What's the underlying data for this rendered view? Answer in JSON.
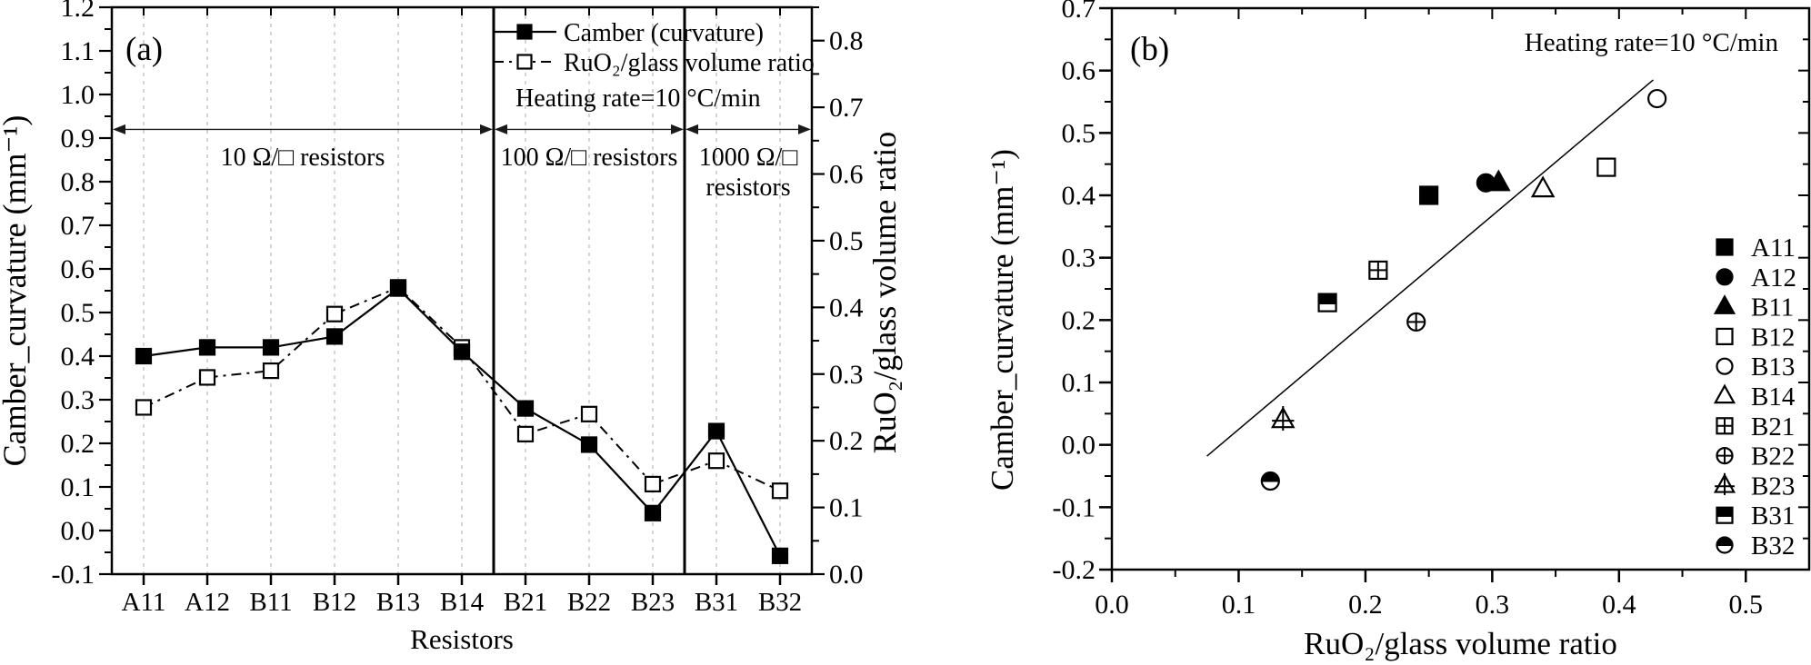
{
  "colors": {
    "foreground": "#000000",
    "background": "#ffffff",
    "grid": "#b9b9b9"
  },
  "chart_data": [
    {
      "id": "a",
      "type": "line",
      "panel_label": "(a)",
      "xlabel": "Resistors",
      "ylabel_left": "Camber_curvature (mm⁻¹)",
      "ylabel_right": "RuO₂/glass volume ratio",
      "categories": [
        "A11",
        "A12",
        "B11",
        "B12",
        "B13",
        "B14",
        "B21",
        "B22",
        "B23",
        "B31",
        "B32"
      ],
      "series": [
        {
          "name": "Camber (curvature)",
          "axis": "left",
          "marker": "filled-square",
          "linestyle": "solid",
          "values": [
            0.4,
            0.42,
            0.42,
            0.445,
            0.555,
            0.41,
            0.28,
            0.197,
            0.04,
            0.228,
            -0.058
          ]
        },
        {
          "name": "RuO₂/glass volume ratio",
          "axis": "right",
          "marker": "open-square",
          "linestyle": "dash-dot",
          "values": [
            0.25,
            0.295,
            0.305,
            0.39,
            0.43,
            0.34,
            0.21,
            0.24,
            0.135,
            0.17,
            0.125
          ]
        }
      ],
      "ylim_left": [
        -0.1,
        1.2
      ],
      "ylim_right": [
        0.0,
        0.85
      ],
      "left_ticks": [
        1.2,
        1.1,
        1.0,
        0.9,
        0.8,
        0.7,
        0.6,
        0.5,
        0.4,
        0.3,
        0.2,
        0.1,
        0.0,
        -0.1
      ],
      "right_ticks": [
        0.8,
        0.7,
        0.6,
        0.5,
        0.4,
        0.3,
        0.2,
        0.1,
        0.0
      ],
      "grid": "vertical-dashed",
      "legend_position": "top-inside",
      "annotations": {
        "heating_rate": "Heating rate=10 °C/min",
        "arrow_y": 0.92,
        "regions": [
          {
            "lines": [
              "10 Ω/□ resistors"
            ],
            "from": "A11",
            "to": "B14"
          },
          {
            "lines": [
              "100 Ω/□ resistors"
            ],
            "from": "B21",
            "to": "B23"
          },
          {
            "lines": [
              "1000 Ω/□",
              "resistors"
            ],
            "from": "B31",
            "to": "B32"
          }
        ]
      }
    },
    {
      "id": "b",
      "type": "scatter",
      "panel_label": "(b)",
      "xlabel": "RuO₂/glass volume ratio",
      "ylabel": "Camber_curvature (mm⁻¹)",
      "xlim": [
        0.0,
        0.55
      ],
      "ylim": [
        -0.2,
        0.7
      ],
      "xticks": [
        0.0,
        0.1,
        0.2,
        0.3,
        0.4,
        0.5
      ],
      "yticks": [
        0.7,
        0.6,
        0.5,
        0.4,
        0.3,
        0.2,
        0.1,
        0.0,
        -0.1,
        -0.2
      ],
      "annotation": "Heating rate=10 °C/min",
      "legend_position": "right-inside",
      "points": [
        {
          "label": "A11",
          "marker": "filled-square",
          "x": 0.25,
          "y": 0.4
        },
        {
          "label": "A12",
          "marker": "filled-circle",
          "x": 0.295,
          "y": 0.42
        },
        {
          "label": "B11",
          "marker": "filled-triangle",
          "x": 0.305,
          "y": 0.42
        },
        {
          "label": "B12",
          "marker": "open-square",
          "x": 0.39,
          "y": 0.445
        },
        {
          "label": "B13",
          "marker": "open-circle",
          "x": 0.43,
          "y": 0.555
        },
        {
          "label": "B14",
          "marker": "open-triangle",
          "x": 0.34,
          "y": 0.41
        },
        {
          "label": "B21",
          "marker": "square-cross",
          "x": 0.21,
          "y": 0.28
        },
        {
          "label": "B22",
          "marker": "circle-plus",
          "x": 0.24,
          "y": 0.197
        },
        {
          "label": "B23",
          "marker": "triangle-plus",
          "x": 0.135,
          "y": 0.04
        },
        {
          "label": "B31",
          "marker": "square-half",
          "x": 0.17,
          "y": 0.228
        },
        {
          "label": "B32",
          "marker": "circle-half",
          "x": 0.125,
          "y": -0.058
        }
      ],
      "fit_line": {
        "x1": 0.075,
        "y1": -0.018,
        "x2": 0.427,
        "y2": 0.585
      }
    }
  ]
}
